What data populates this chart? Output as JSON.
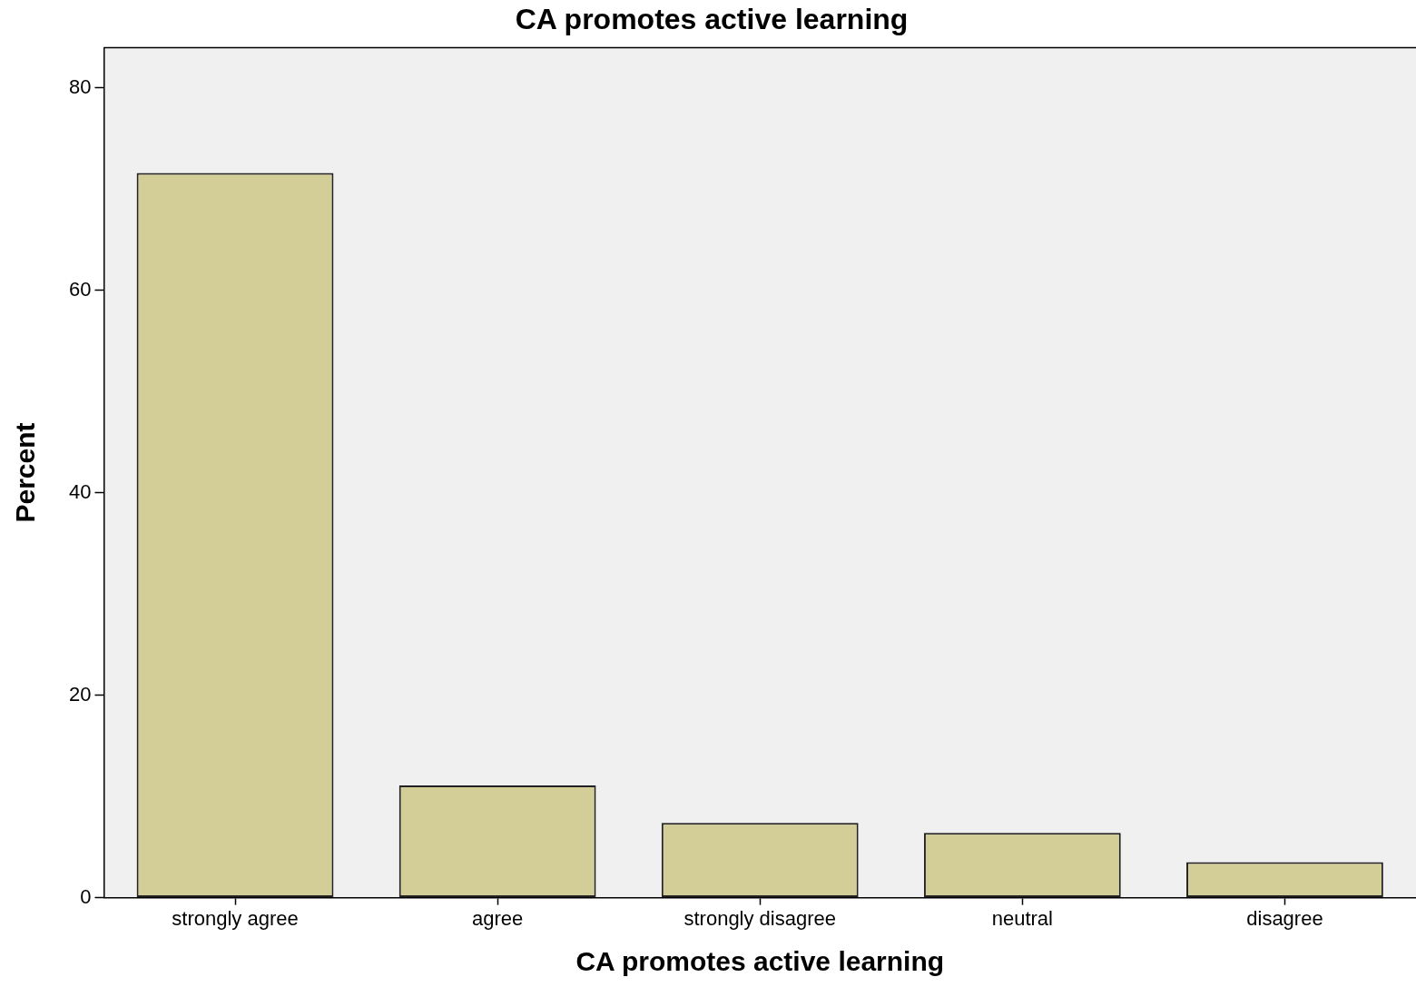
{
  "chart_data": {
    "type": "bar",
    "title": "CA promotes active learning",
    "xlabel": "CA promotes active learning",
    "ylabel": "Percent",
    "categories": [
      "strongly agree",
      "agree",
      "strongly disagree",
      "neutral",
      "disagree"
    ],
    "values": [
      71.6,
      11.1,
      7.4,
      6.4,
      3.5
    ],
    "color": "#d3ce97",
    "ylim": [
      0,
      84
    ],
    "yticks": [
      0,
      20,
      40,
      60,
      80
    ],
    "grid": false,
    "legend": false
  }
}
